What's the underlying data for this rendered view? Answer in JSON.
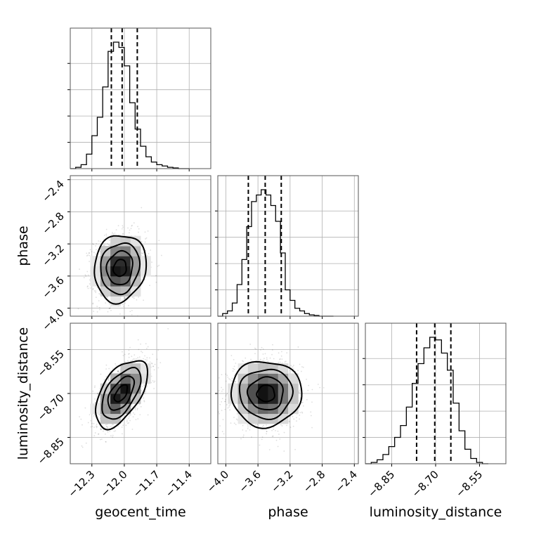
{
  "chart_data": {
    "type": "corner",
    "parameters": [
      {
        "key": "geocent_time",
        "label": "geocent_time",
        "range": [
          -12.5,
          -11.2
        ],
        "ticks": [
          -12.3,
          -12.0,
          -11.7,
          -11.4
        ],
        "tick_labels": [
          "−12.3",
          "−12.0",
          "−11.7",
          "−11.4"
        ],
        "quantiles": [
          -12.12,
          -12.02,
          -11.88
        ]
      },
      {
        "key": "phase",
        "label": "phase",
        "range": [
          -4.1,
          -2.35
        ],
        "ticks": [
          -4.0,
          -3.6,
          -3.2,
          -2.8,
          -2.4
        ],
        "tick_labels": [
          "−4.0",
          "−3.6",
          "−3.2",
          "−2.8",
          "−2.4"
        ],
        "quantiles": [
          -3.72,
          -3.51,
          -3.31
        ]
      },
      {
        "key": "luminosity_distance",
        "label": "luminosity_distance",
        "range": [
          -8.94,
          -8.46
        ],
        "ticks": [
          -8.85,
          -8.7,
          -8.55
        ],
        "tick_labels": [
          "−8.85",
          "−8.70",
          "−8.55"
        ],
        "quantiles": [
          -8.765,
          -8.703,
          -8.648
        ]
      }
    ],
    "histograms": [
      {
        "parameter": "geocent_time",
        "bin_edges": [
          -12.5,
          -12.45,
          -12.4,
          -12.35,
          -12.3,
          -12.25,
          -12.2,
          -12.15,
          -12.1,
          -12.05,
          -12.0,
          -11.95,
          -11.9,
          -11.85,
          -11.8,
          -11.75,
          -11.7,
          -11.65,
          -11.6,
          -11.55,
          -11.5,
          -11.45,
          -11.4
        ],
        "counts": [
          0,
          0.01,
          0.03,
          0.11,
          0.25,
          0.39,
          0.62,
          0.89,
          0.96,
          0.92,
          0.78,
          0.5,
          0.3,
          0.17,
          0.09,
          0.05,
          0.03,
          0.02,
          0.01,
          0.005,
          0,
          0
        ]
      },
      {
        "parameter": "phase",
        "bin_edges": [
          -4.1,
          -4.04,
          -3.98,
          -3.92,
          -3.86,
          -3.8,
          -3.74,
          -3.68,
          -3.62,
          -3.56,
          -3.5,
          -3.44,
          -3.38,
          -3.32,
          -3.26,
          -3.2,
          -3.14,
          -3.08,
          -3.02,
          -2.96,
          -2.9,
          -2.84,
          -2.78,
          -2.72,
          -2.66
        ],
        "counts": [
          0,
          0.02,
          0.04,
          0.1,
          0.24,
          0.43,
          0.68,
          0.87,
          0.92,
          0.96,
          0.92,
          0.84,
          0.72,
          0.48,
          0.2,
          0.12,
          0.06,
          0.04,
          0.02,
          0.01,
          0.005,
          0,
          0,
          0
        ]
      },
      {
        "parameter": "luminosity_distance",
        "bin_edges": [
          -8.94,
          -8.92,
          -8.9,
          -8.88,
          -8.86,
          -8.84,
          -8.82,
          -8.8,
          -8.78,
          -8.76,
          -8.74,
          -8.72,
          -8.7,
          -8.68,
          -8.66,
          -8.64,
          -8.62,
          -8.6,
          -8.58,
          -8.56,
          -8.54,
          -8.52
        ],
        "counts": [
          0,
          0.01,
          0.03,
          0.07,
          0.13,
          0.2,
          0.29,
          0.43,
          0.61,
          0.76,
          0.88,
          0.96,
          0.94,
          0.84,
          0.71,
          0.46,
          0.25,
          0.11,
          0.04,
          0.01,
          0
        ]
      }
    ],
    "joint_distributions": [
      {
        "x": "geocent_time",
        "y": "phase",
        "mean": [
          -12.04,
          -3.5
        ],
        "sigma": [
          0.12,
          0.21
        ],
        "correlation": 0.1,
        "contour_levels_sigma": [
          0.5,
          1.0,
          1.5,
          2.0
        ]
      },
      {
        "x": "geocent_time",
        "y": "luminosity_distance",
        "mean": [
          -12.03,
          -8.7
        ],
        "sigma": [
          0.12,
          0.058
        ],
        "correlation": 0.55,
        "contour_levels_sigma": [
          0.5,
          1.0,
          1.5,
          2.0
        ]
      },
      {
        "x": "phase",
        "y": "luminosity_distance",
        "mean": [
          -3.5,
          -8.7
        ],
        "sigma": [
          0.22,
          0.056
        ],
        "correlation": 0.0,
        "contour_levels_sigma": [
          0.5,
          1.0,
          1.5,
          2.0
        ]
      }
    ],
    "grid": true
  }
}
